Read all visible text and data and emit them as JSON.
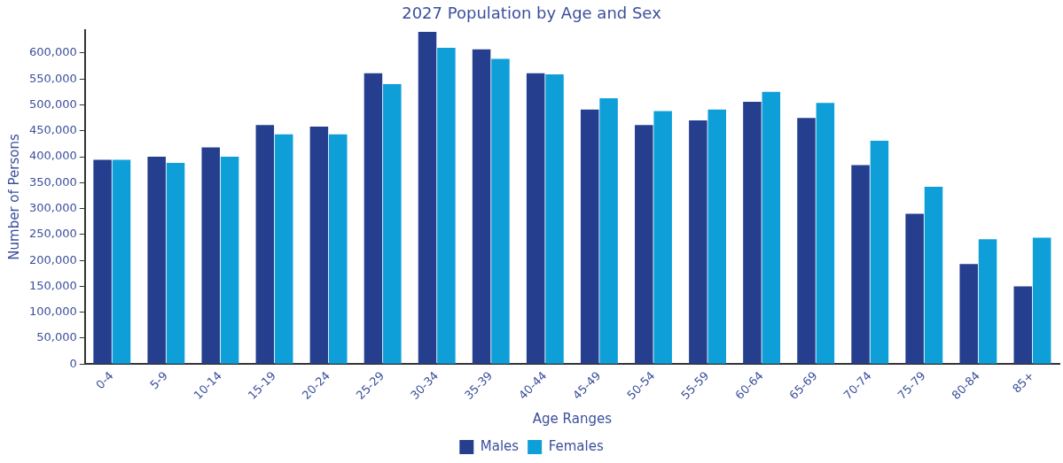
{
  "chart_data": {
    "type": "bar",
    "title": "2027 Population by Age and Sex",
    "xlabel": "Age Ranges",
    "ylabel": "Number of Persons",
    "categories": [
      "0-4",
      "5-9",
      "10-14",
      "15-19",
      "20-24",
      "25-29",
      "30-34",
      "35-39",
      "40-44",
      "45-49",
      "50-54",
      "55-59",
      "60-64",
      "65-69",
      "70-74",
      "75-79",
      "80-84",
      "85+"
    ],
    "series": [
      {
        "name": "Males",
        "color": "#253f8e",
        "values": [
          394000,
          400000,
          418000,
          461000,
          458000,
          561000,
          641000,
          607000,
          561000,
          491000,
          461000,
          470000,
          506000,
          475000,
          384000,
          290000,
          193000,
          150000
        ]
      },
      {
        "name": "Females",
        "color": "#0e9fd9",
        "values": [
          394000,
          388000,
          400000,
          443000,
          443000,
          540000,
          610000,
          589000,
          559000,
          513000,
          488000,
          491000,
          525000,
          504000,
          431000,
          342000,
          241000,
          244000
        ]
      }
    ],
    "ylim": [
      0,
      645000
    ],
    "yticks": [
      0,
      {
        "value": 50000,
        "label": "50,000"
      },
      {
        "value": 100000,
        "label": "100,000"
      },
      {
        "value": 150000,
        "label": "150,000"
      },
      {
        "value": 200000,
        "label": "200,000"
      },
      {
        "value": 250000,
        "label": "250,000"
      },
      {
        "value": 300000,
        "label": "300,000"
      },
      {
        "value": 350000,
        "label": "350,000"
      },
      {
        "value": 400000,
        "label": "400,000"
      },
      {
        "value": 450000,
        "label": "450,000"
      },
      {
        "value": 500000,
        "label": "500,000"
      },
      {
        "value": 550000,
        "label": "550,000"
      },
      {
        "value": 600000,
        "label": "600,000"
      }
    ],
    "grid": false,
    "legend": "bottom"
  }
}
